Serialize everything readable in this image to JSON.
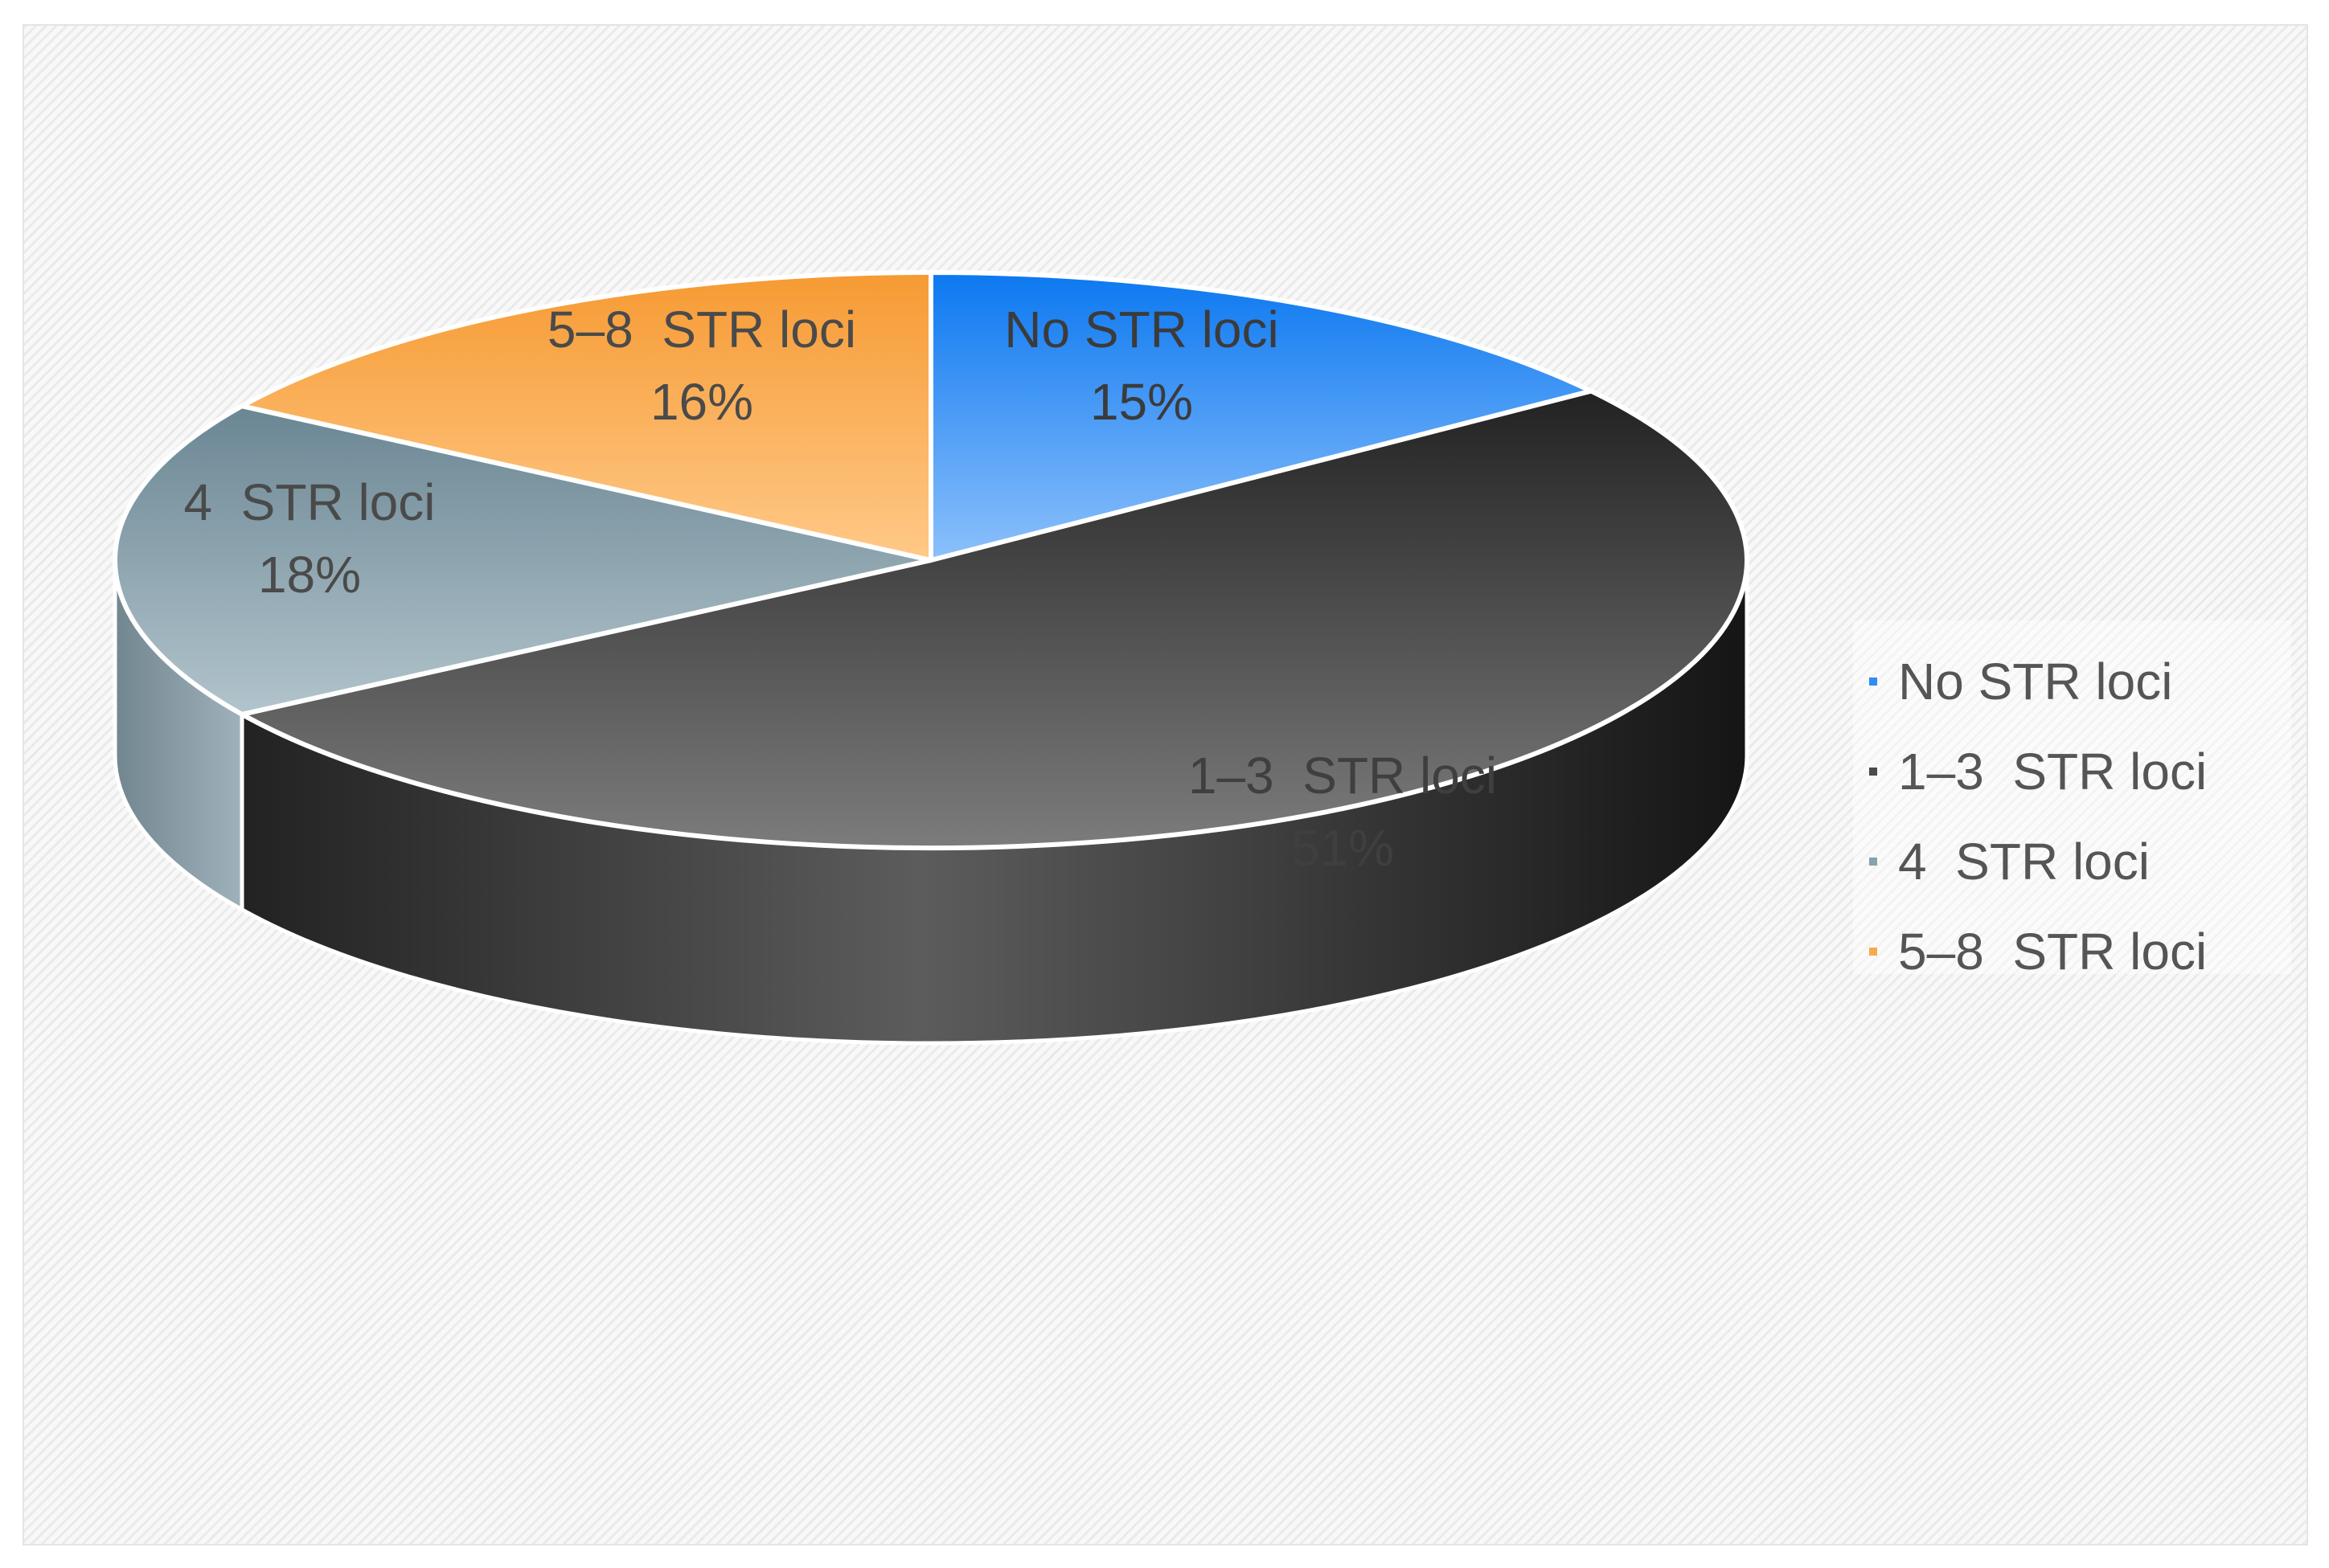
{
  "chart_data": {
    "type": "pie",
    "title": "",
    "slices": [
      {
        "label": "No STR loci",
        "value": 15,
        "percent_label": "15%",
        "color": "#2f8cf6"
      },
      {
        "label": "1–3  STR loci",
        "value": 51,
        "percent_label": "51%",
        "color": "#4a4a4a"
      },
      {
        "label": "4  STR loci",
        "value": 18,
        "percent_label": "18%",
        "color": "#8aa2ae"
      },
      {
        "label": "5–8  STR loci",
        "value": 16,
        "percent_label": "16%",
        "color": "#f8a94c"
      }
    ],
    "legend": {
      "position": "right",
      "items": [
        "No STR loci",
        "1–3  STR loci",
        "4  STR loci",
        "5–8  STR loci"
      ]
    },
    "style": "3d-exploded-none"
  }
}
